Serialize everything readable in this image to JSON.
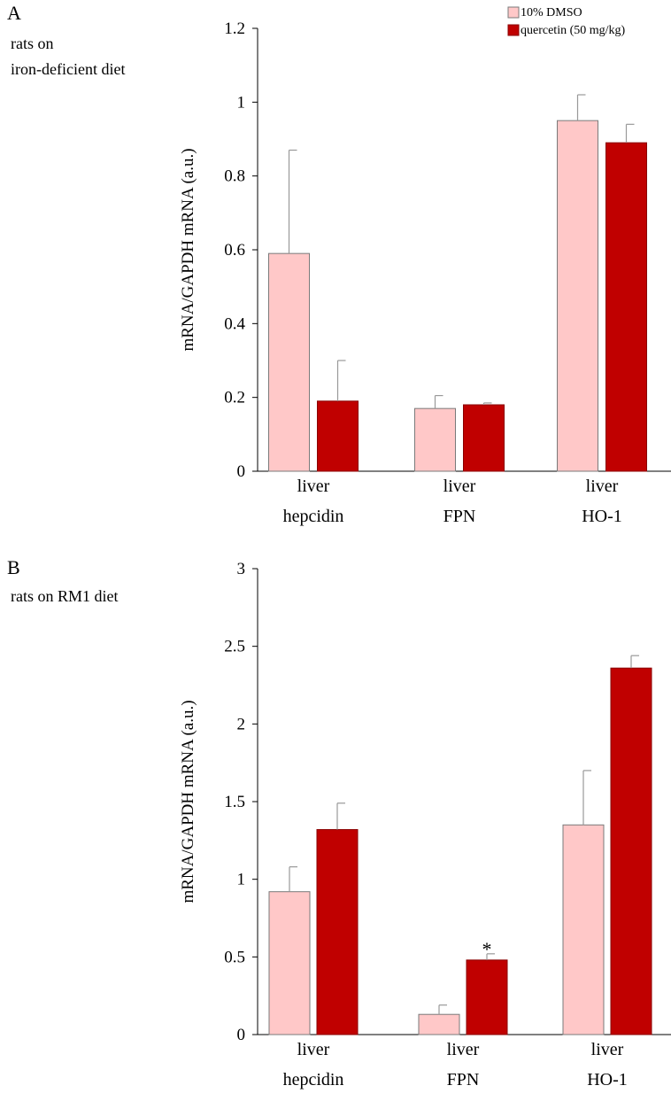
{
  "chart_data": [
    {
      "type": "bar",
      "panel_label": "A",
      "subtitle_lines": [
        "rats on",
        "iron-deficient diet"
      ],
      "ylabel": "mRNA/GAPDH mRNA (a.u.)",
      "ylim": [
        0,
        1.2
      ],
      "yticks": [
        "0",
        "0.2",
        "0.4",
        "0.6",
        "0.8",
        "1",
        "1.2"
      ],
      "categories": [
        {
          "line1": "liver",
          "line2": "hepcidin"
        },
        {
          "line1": "liver",
          "line2": "FPN"
        },
        {
          "line1": "liver",
          "line2": "HO-1"
        }
      ],
      "legend": {
        "position": "top-right"
      },
      "series": [
        {
          "name": "10% DMSO",
          "color": "#ffc8c8",
          "values": [
            0.59,
            0.17,
            0.95
          ],
          "errors": [
            0.28,
            0.035,
            0.07
          ]
        },
        {
          "name": "quercetin (50 mg/kg)",
          "color": "#c00000",
          "values": [
            0.19,
            0.18,
            0.89
          ],
          "errors": [
            0.11,
            0.005,
            0.05
          ]
        }
      ],
      "annotations": []
    },
    {
      "type": "bar",
      "panel_label": "B",
      "subtitle_lines": [
        "rats on RM1 diet"
      ],
      "ylabel": "mRNA/GAPDH mRNA (a.u.)",
      "ylim": [
        0,
        3
      ],
      "yticks": [
        "0",
        "0.5",
        "1",
        "1.5",
        "2",
        "2.5",
        "3"
      ],
      "categories": [
        {
          "line1": "liver",
          "line2": "hepcidin"
        },
        {
          "line1": "liver",
          "line2": "FPN"
        },
        {
          "line1": "liver",
          "line2": "HO-1"
        }
      ],
      "legend": null,
      "series": [
        {
          "name": "10% DMSO",
          "color": "#ffc8c8",
          "values": [
            0.92,
            0.13,
            1.35
          ],
          "errors": [
            0.16,
            0.06,
            0.35
          ]
        },
        {
          "name": "quercetin (50 mg/kg)",
          "color": "#c00000",
          "values": [
            1.32,
            0.48,
            2.36
          ],
          "errors": [
            0.17,
            0.04,
            0.08
          ]
        }
      ],
      "annotations": [
        {
          "text": "*",
          "category": 1,
          "series": 1
        }
      ]
    }
  ]
}
